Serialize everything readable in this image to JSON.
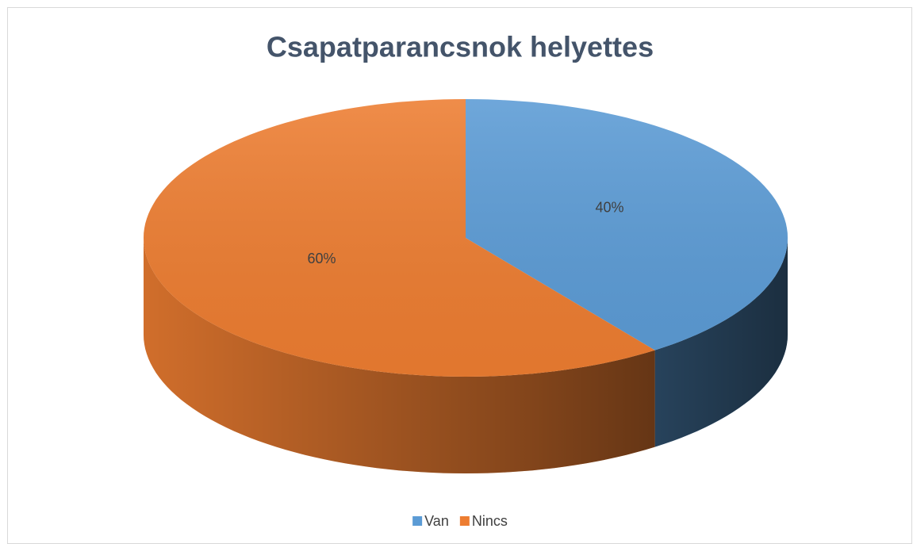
{
  "chart_data": {
    "type": "pie",
    "title": "Csapatparancsnok helyettes",
    "categories": [
      "Van",
      "Nincs"
    ],
    "values": [
      40,
      60
    ],
    "value_labels": [
      "40%",
      "60%"
    ],
    "colors": [
      "#5b9bd5",
      "#ed7d31"
    ],
    "legend": "bottom",
    "three_d": true
  }
}
